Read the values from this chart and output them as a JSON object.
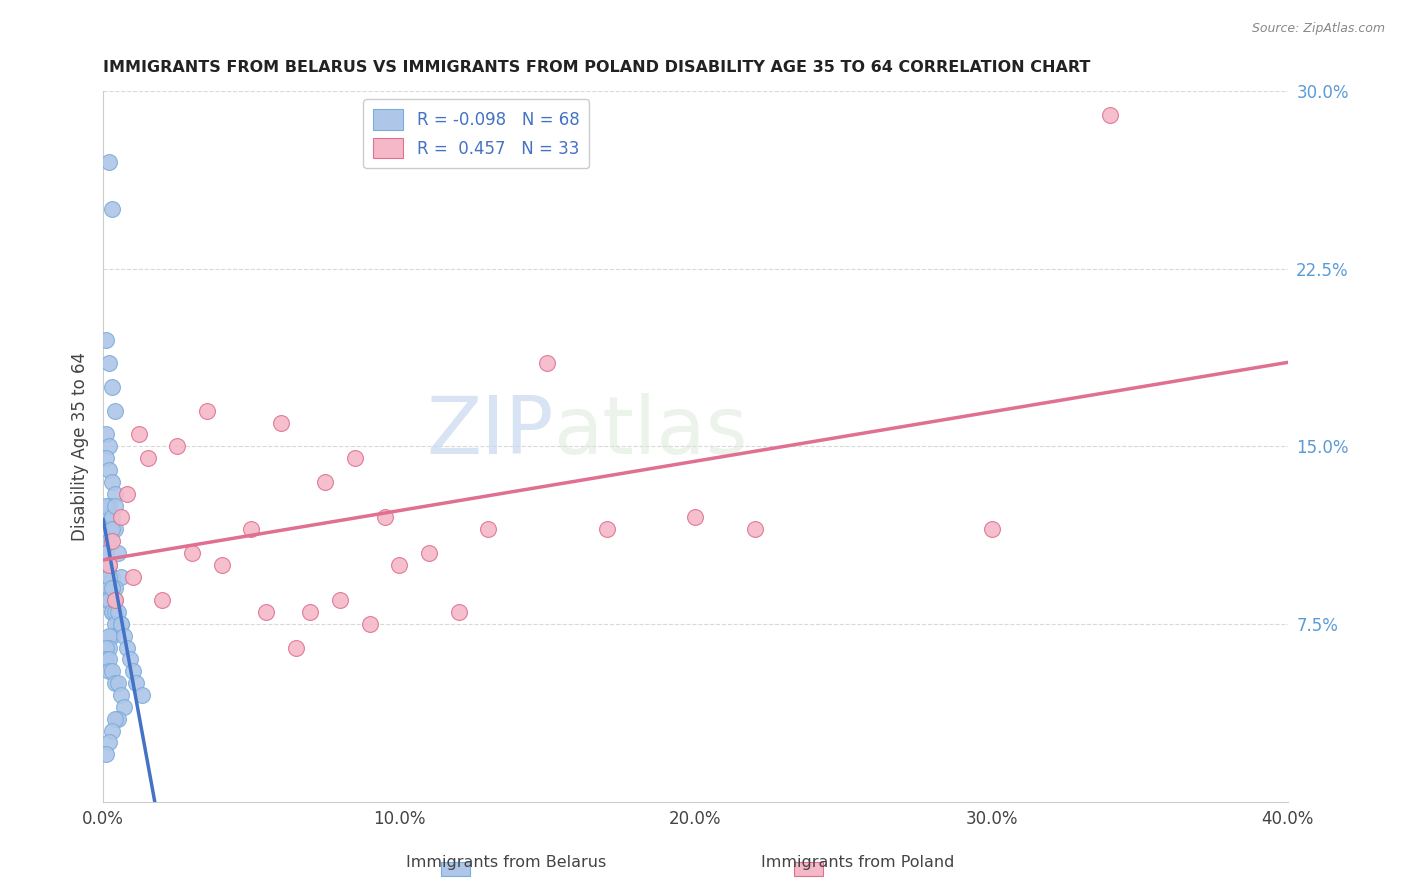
{
  "title": "IMMIGRANTS FROM BELARUS VS IMMIGRANTS FROM POLAND DISABILITY AGE 35 TO 64 CORRELATION CHART",
  "source": "Source: ZipAtlas.com",
  "ylabel": "Disability Age 35 to 64",
  "legend_label_blue": "Immigrants from Belarus",
  "legend_label_pink": "Immigrants from Poland",
  "R_blue": -0.098,
  "N_blue": 68,
  "R_pink": 0.457,
  "N_pink": 33,
  "xlim": [
    0.0,
    0.4
  ],
  "ylim": [
    0.0,
    0.3
  ],
  "xticks": [
    0.0,
    0.1,
    0.2,
    0.3,
    0.4
  ],
  "yticks": [
    0.075,
    0.15,
    0.225,
    0.3
  ],
  "blue_scatter_x": [
    0.002,
    0.003,
    0.001,
    0.002,
    0.003,
    0.004,
    0.001,
    0.002,
    0.001,
    0.002,
    0.003,
    0.004,
    0.002,
    0.001,
    0.001,
    0.003,
    0.004,
    0.002,
    0.002,
    0.001,
    0.001,
    0.001,
    0.002,
    0.002,
    0.003,
    0.004,
    0.003,
    0.005,
    0.006,
    0.004,
    0.003,
    0.002,
    0.001,
    0.002,
    0.003,
    0.003,
    0.004,
    0.005,
    0.006,
    0.004,
    0.003,
    0.002,
    0.002,
    0.001,
    0.001,
    0.002,
    0.002,
    0.003,
    0.004,
    0.005,
    0.006,
    0.007,
    0.005,
    0.004,
    0.003,
    0.002,
    0.001,
    0.002,
    0.003,
    0.004,
    0.005,
    0.006,
    0.007,
    0.008,
    0.009,
    0.01,
    0.011,
    0.013
  ],
  "blue_scatter_y": [
    0.27,
    0.25,
    0.195,
    0.185,
    0.175,
    0.165,
    0.155,
    0.15,
    0.145,
    0.14,
    0.135,
    0.13,
    0.125,
    0.12,
    0.125,
    0.12,
    0.115,
    0.11,
    0.11,
    0.105,
    0.105,
    0.105,
    0.1,
    0.1,
    0.095,
    0.125,
    0.115,
    0.105,
    0.095,
    0.09,
    0.09,
    0.09,
    0.085,
    0.085,
    0.08,
    0.08,
    0.08,
    0.075,
    0.075,
    0.075,
    0.07,
    0.07,
    0.065,
    0.065,
    0.06,
    0.06,
    0.055,
    0.055,
    0.05,
    0.05,
    0.045,
    0.04,
    0.035,
    0.035,
    0.03,
    0.025,
    0.02,
    0.095,
    0.09,
    0.085,
    0.08,
    0.075,
    0.07,
    0.065,
    0.06,
    0.055,
    0.05,
    0.045
  ],
  "pink_scatter_x": [
    0.002,
    0.003,
    0.004,
    0.006,
    0.008,
    0.01,
    0.012,
    0.015,
    0.02,
    0.025,
    0.03,
    0.035,
    0.04,
    0.05,
    0.055,
    0.06,
    0.065,
    0.07,
    0.075,
    0.08,
    0.085,
    0.09,
    0.095,
    0.1,
    0.11,
    0.12,
    0.13,
    0.15,
    0.17,
    0.2,
    0.22,
    0.3,
    0.34
  ],
  "pink_scatter_y": [
    0.1,
    0.11,
    0.085,
    0.12,
    0.13,
    0.095,
    0.155,
    0.145,
    0.085,
    0.15,
    0.105,
    0.165,
    0.1,
    0.115,
    0.08,
    0.16,
    0.065,
    0.08,
    0.135,
    0.085,
    0.145,
    0.075,
    0.12,
    0.1,
    0.105,
    0.08,
    0.115,
    0.185,
    0.115,
    0.12,
    0.115,
    0.115,
    0.29
  ],
  "blue_line_color": "#4472c4",
  "pink_line_color": "#e07090",
  "blue_dot_facecolor": "#aec6e8",
  "blue_dot_edgecolor": "#7aaddb",
  "pink_dot_facecolor": "#f4b8c8",
  "pink_dot_edgecolor": "#e07090",
  "watermark_text": "ZIPatlas",
  "background_color": "#ffffff",
  "grid_color": "#d0d0d0",
  "blue_line_solid_end_x": 0.025,
  "blue_line_dash_start_x": 0.025
}
